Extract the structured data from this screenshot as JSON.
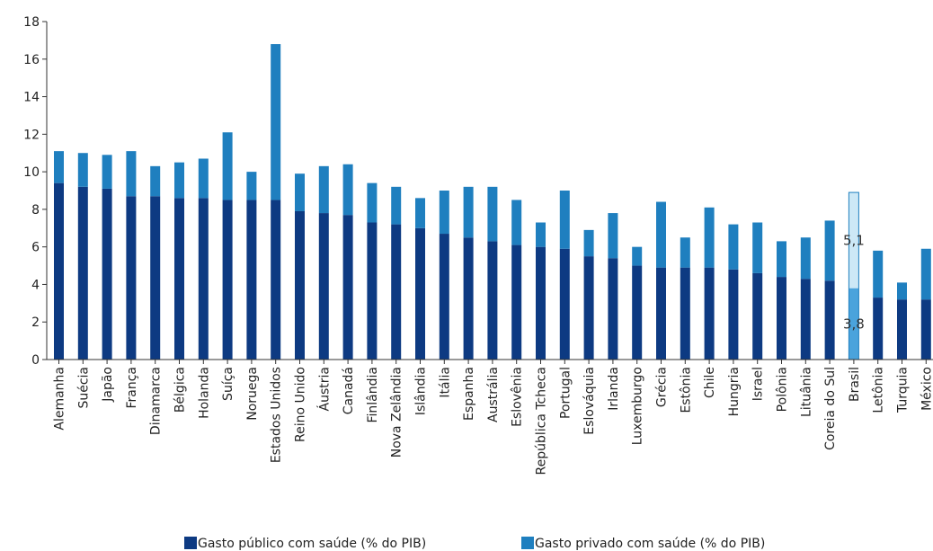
{
  "chart_data": {
    "type": "bar",
    "stacked": true,
    "title": "",
    "xlabel": "",
    "ylabel": "",
    "ylim": [
      0,
      18
    ],
    "yticks": [
      0,
      2,
      4,
      6,
      8,
      10,
      12,
      14,
      16,
      18
    ],
    "grid": false,
    "legend_position": "bottom",
    "categories": [
      "Alemanha",
      "Suécia",
      "Japão",
      "França",
      "Dinamarca",
      "Bélgica",
      "Holanda",
      "Suíça",
      "Noruega",
      "Estados Unidos",
      "Reino Unido",
      "Áustria",
      "Canadá",
      "Finlândia",
      "Nova Zelândia",
      "Islândia",
      "Itália",
      "Espanha",
      "Austrália",
      "Eslovênia",
      "República Tcheca",
      "Portugal",
      "Eslováquia",
      "Irlanda",
      "Luxemburgo",
      "Grécia",
      "Estônia",
      "Chile",
      "Hungria",
      "Israel",
      "Polônia",
      "Lituânia",
      "Coreia do Sul",
      "Brasil",
      "Letônia",
      "Turquia",
      "México"
    ],
    "series": [
      {
        "name": "Gasto público com saúde (% do PIB)",
        "color": "#0d3a82",
        "values": [
          9.4,
          9.2,
          9.1,
          8.7,
          8.7,
          8.6,
          8.6,
          8.5,
          8.5,
          8.5,
          7.9,
          7.8,
          7.7,
          7.3,
          7.2,
          7.0,
          6.7,
          6.5,
          6.3,
          6.1,
          6.0,
          5.9,
          5.5,
          5.4,
          5.0,
          4.9,
          4.9,
          4.9,
          4.8,
          4.6,
          4.4,
          4.3,
          4.2,
          3.8,
          3.3,
          3.2,
          3.2
        ]
      },
      {
        "name": "Gasto privado com saúde (% do PIB)",
        "color": "#1f7fbf",
        "values": [
          1.7,
          1.8,
          1.8,
          2.4,
          1.6,
          1.9,
          2.1,
          3.6,
          1.5,
          8.3,
          2.0,
          2.5,
          2.7,
          2.1,
          2.0,
          1.6,
          2.3,
          2.7,
          2.9,
          2.4,
          1.3,
          3.1,
          1.4,
          2.4,
          1.0,
          3.5,
          1.6,
          3.2,
          2.4,
          2.7,
          1.9,
          2.2,
          3.2,
          5.1,
          2.5,
          0.9,
          2.7
        ]
      }
    ],
    "highlight": {
      "category": "Brasil",
      "public_color": "#4aa3dc",
      "private_color": "#cde8f6",
      "outline_color": "#1f7fbf",
      "labels": [
        "3,8",
        "5,1"
      ]
    }
  }
}
